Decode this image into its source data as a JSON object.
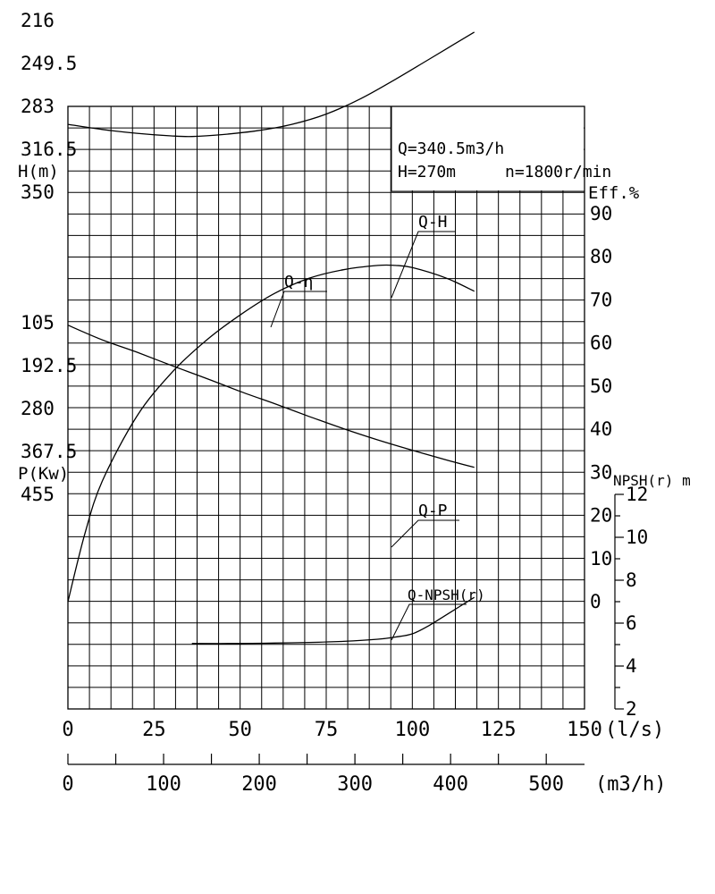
{
  "chart_data": {
    "type": "line",
    "title": "",
    "info": {
      "line1": "Q=340.5m3/h",
      "line2_h": "H=270m",
      "line2_n": "n=1800r/min"
    },
    "axes": {
      "x_ls": {
        "label": "(l/s)",
        "ticks": [
          "0",
          "25",
          "50",
          "75",
          "100",
          "125",
          "150"
        ],
        "range": [
          0,
          150
        ]
      },
      "x_m3h": {
        "label": "(m3/h)",
        "ticks": [
          "0",
          "100",
          "200",
          "300",
          "400",
          "500"
        ],
        "range": [
          0,
          540
        ]
      },
      "head": {
        "label": "H(m)",
        "ticks": [
          "350",
          "316.5",
          "283",
          "249.5",
          "216"
        ]
      },
      "power": {
        "label": "P(Kw)",
        "ticks": [
          "455",
          "367.5",
          "280",
          "192.5",
          "105"
        ]
      },
      "eff": {
        "label": "Eff.%",
        "ticks": [
          "90",
          "80",
          "70",
          "60",
          "50",
          "40",
          "30",
          "20",
          "10",
          "0"
        ]
      },
      "npsh": {
        "label": "NPSH(r) m",
        "ticks": [
          "12",
          "10",
          "8",
          "6",
          "4",
          "2"
        ]
      }
    },
    "grid": true,
    "series": [
      {
        "name": "Q-H",
        "axis": "head",
        "x": [
          0,
          10,
          20,
          30,
          36,
          45,
          55,
          65,
          75,
          85,
          95,
          105,
          118
        ],
        "y": [
          297,
          301,
          304,
          306,
          306.5,
          305,
          302,
          297,
          289,
          277,
          262,
          246,
          225
        ]
      },
      {
        "name": "Q-η",
        "axis": "eff",
        "x": [
          0,
          5,
          10,
          20,
          30,
          40,
          50,
          60,
          70,
          80,
          90,
          95,
          100,
          110,
          118
        ],
        "y": [
          0,
          16,
          28,
          43,
          53,
          60.5,
          66.5,
          71.5,
          75,
          77,
          78,
          78,
          77.5,
          75,
          72
        ]
      },
      {
        "name": "Q-P",
        "axis": "power",
        "x": [
          0,
          10,
          20,
          30,
          40,
          50,
          60,
          70,
          80,
          90,
          100,
          110,
          118
        ],
        "y": [
          110,
          140,
          165,
          192,
          218,
          245,
          270,
          296,
          321,
          344,
          365,
          385,
          400
        ]
      },
      {
        "name": "Q-NPSH(r)",
        "axis": "npsh",
        "x": [
          36,
          50,
          60,
          70,
          80,
          90,
          95,
          100,
          105,
          110,
          118
        ],
        "y": [
          5.05,
          5.05,
          5.07,
          5.1,
          5.15,
          5.25,
          5.35,
          5.5,
          5.9,
          6.4,
          7.2
        ]
      }
    ]
  }
}
